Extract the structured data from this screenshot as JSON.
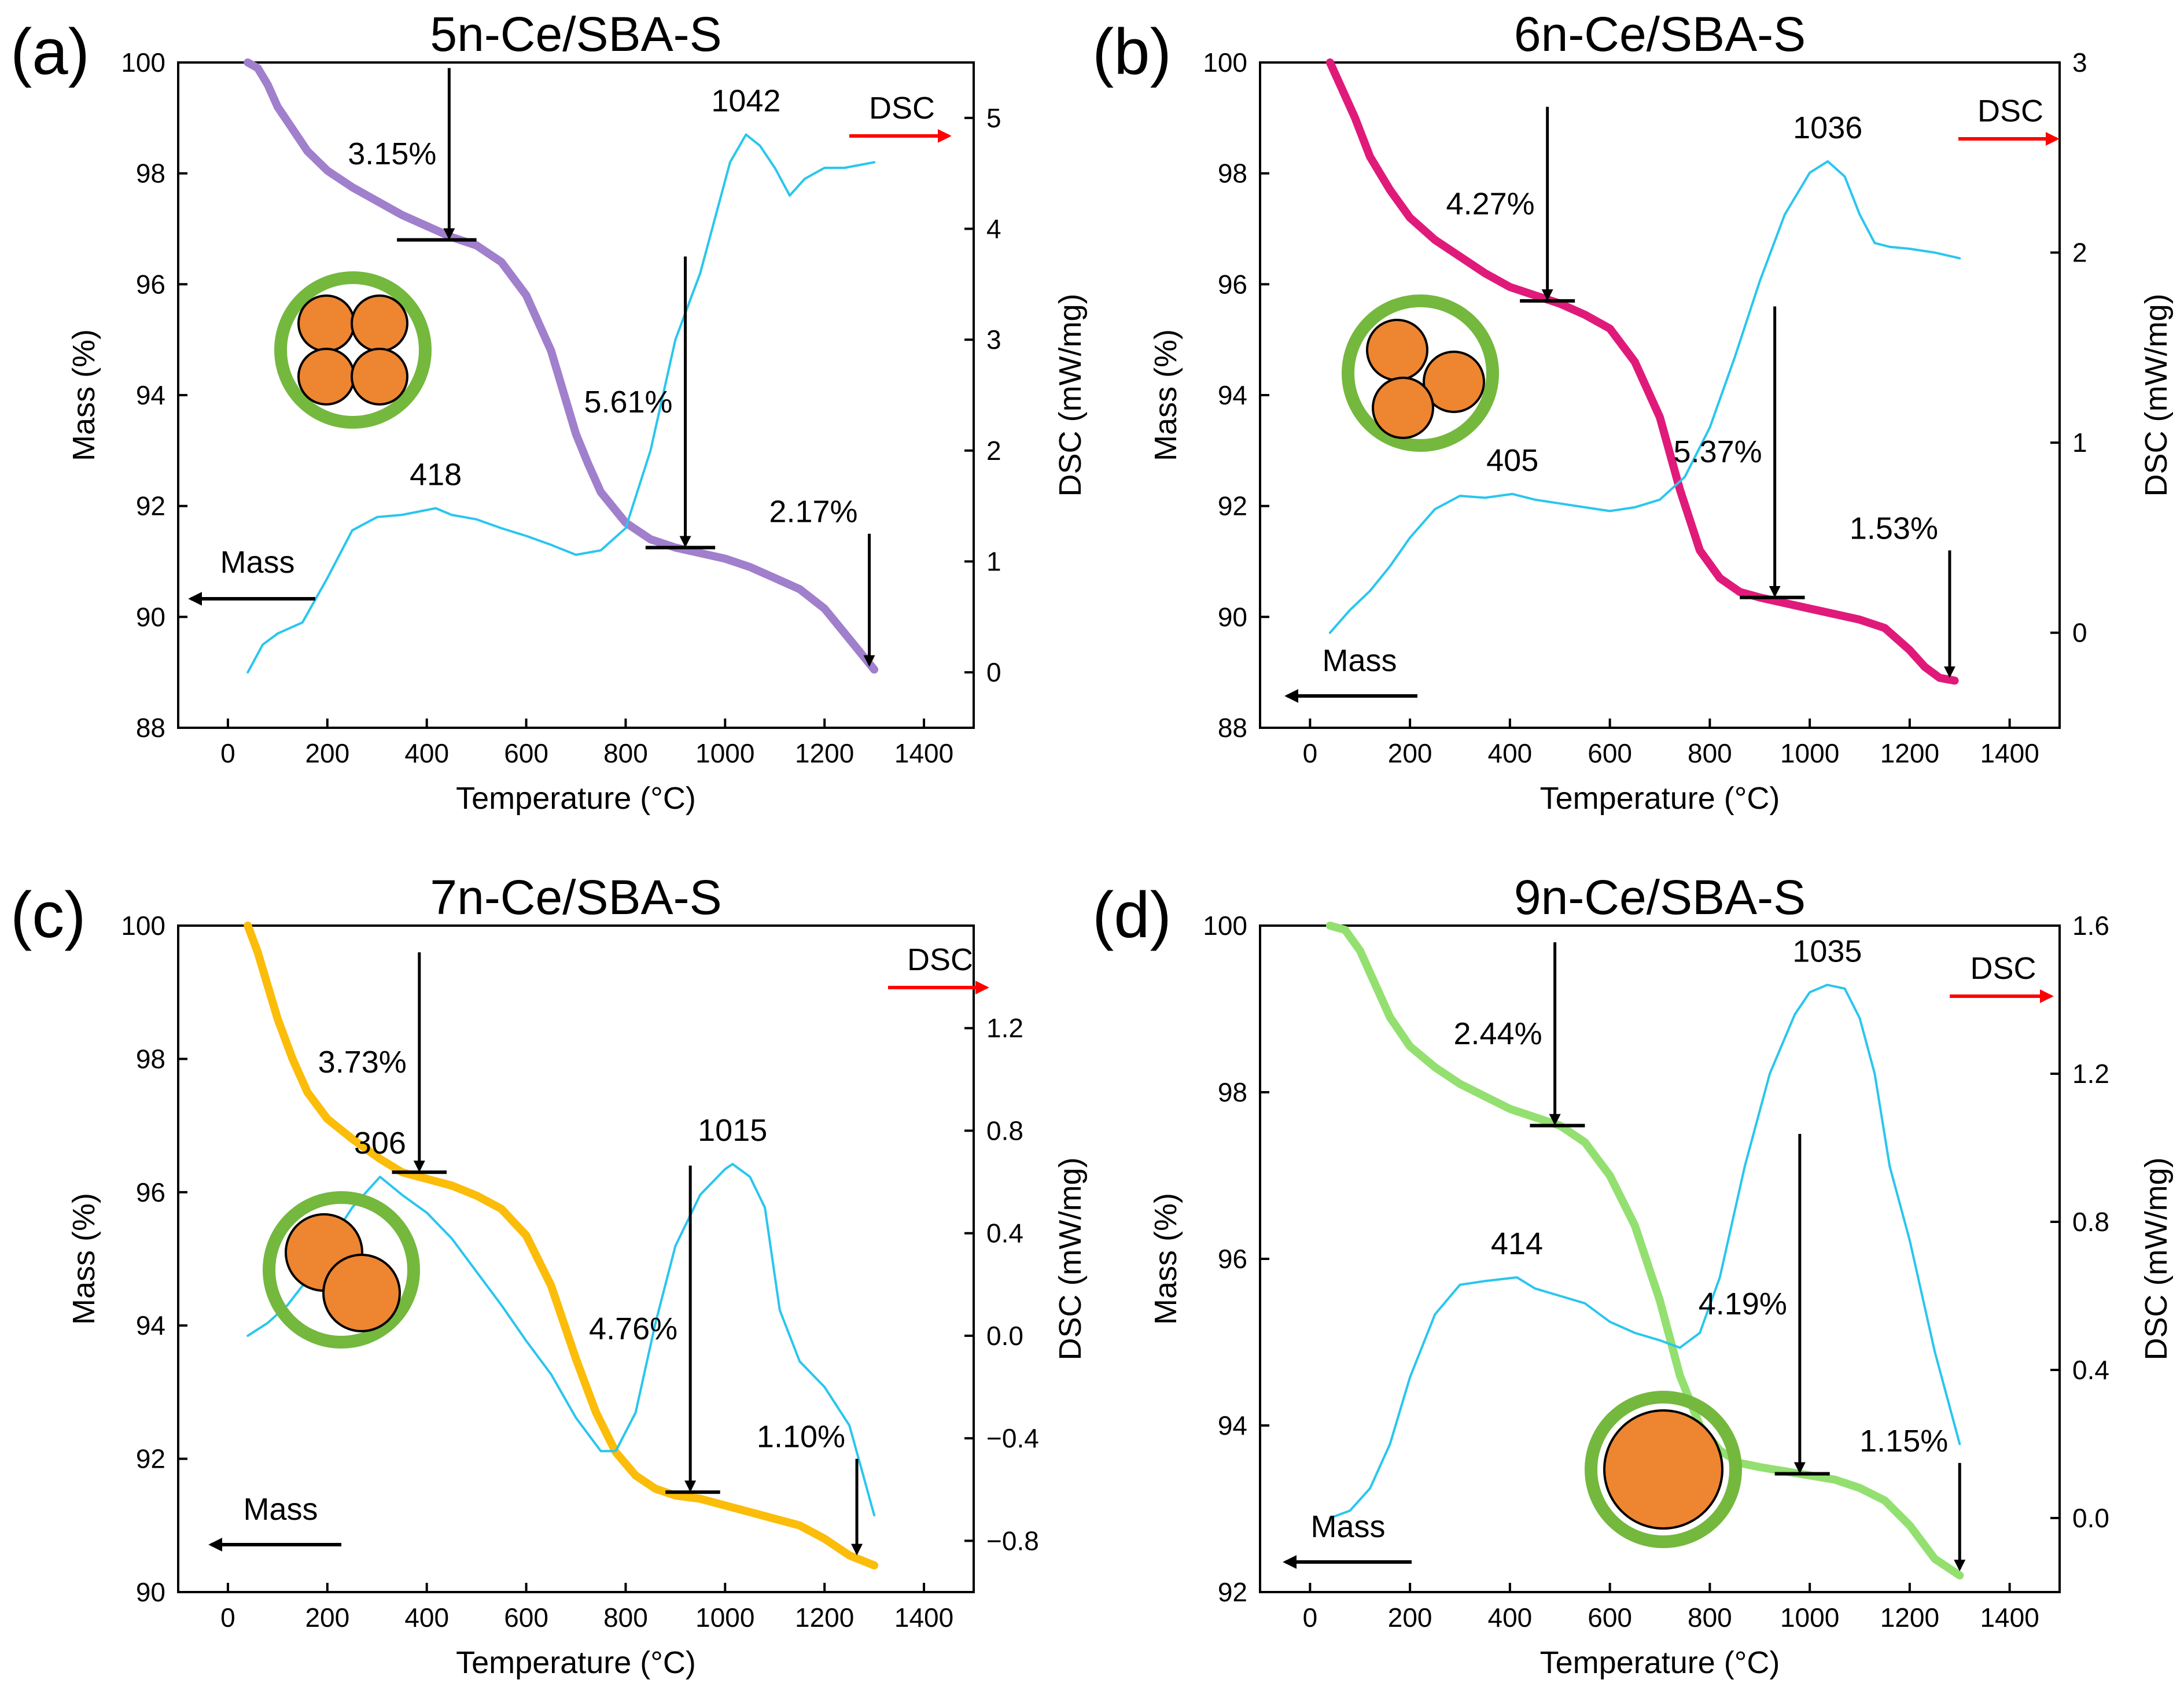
{
  "figure": {
    "background": "#ffffff"
  },
  "colors": {
    "dsc_curve": "#29c6ee",
    "annotation_red": "#ff0000",
    "arrow": "#000000",
    "shell_green": "#74b83e",
    "particle_orange": "#ee8530"
  },
  "chart_data": [
    {
      "panel": "(a)",
      "title": "5n-Ce/SBA-S",
      "type": "line",
      "xlabel": "Temperature (°C)",
      "ylabel_left": "Mass (%)",
      "ylabel_right": "DSC (mW/mg)",
      "xlim": [
        -100,
        1500
      ],
      "ylim_left": [
        88,
        100
      ],
      "ylim_right": [
        -0.5,
        5.5
      ],
      "xticks": [
        0,
        200,
        400,
        600,
        800,
        1000,
        1200,
        1400
      ],
      "yticks_left": [
        88,
        90,
        92,
        94,
        96,
        98,
        100
      ],
      "yticks_right": [
        0,
        1,
        2,
        3,
        4,
        5
      ],
      "mass_color": "#a07fcc",
      "series": [
        {
          "name": "Mass",
          "axis": "left",
          "x": [
            40,
            60,
            80,
            100,
            130,
            160,
            200,
            250,
            300,
            350,
            400,
            450,
            500,
            550,
            600,
            650,
            700,
            725,
            750,
            800,
            850,
            900,
            950,
            1000,
            1050,
            1100,
            1150,
            1200,
            1250,
            1300
          ],
          "y": [
            100,
            99.9,
            99.6,
            99.2,
            98.8,
            98.4,
            98.05,
            97.75,
            97.5,
            97.25,
            97.05,
            96.85,
            96.7,
            96.4,
            95.8,
            94.8,
            93.3,
            92.75,
            92.25,
            91.7,
            91.4,
            91.25,
            91.15,
            91.05,
            90.9,
            90.7,
            90.5,
            90.15,
            89.6,
            89.05
          ]
        },
        {
          "name": "DSC",
          "axis": "right",
          "x": [
            40,
            70,
            100,
            150,
            200,
            250,
            300,
            350,
            418,
            450,
            500,
            550,
            600,
            650,
            700,
            750,
            800,
            850,
            900,
            950,
            980,
            1010,
            1042,
            1070,
            1100,
            1130,
            1160,
            1200,
            1240,
            1300
          ],
          "y": [
            0,
            0.25,
            0.35,
            0.45,
            0.85,
            1.28,
            1.4,
            1.42,
            1.48,
            1.42,
            1.38,
            1.3,
            1.23,
            1.15,
            1.06,
            1.1,
            1.3,
            2.0,
            3.0,
            3.6,
            4.1,
            4.6,
            4.85,
            4.75,
            4.55,
            4.3,
            4.45,
            4.55,
            4.55,
            4.6
          ]
        }
      ],
      "peak_labels": [
        {
          "text": "418",
          "x": 418,
          "y": 1.48
        },
        {
          "text": "1042",
          "x": 1042,
          "y": 4.85
        }
      ],
      "steps": [
        {
          "label": "3.15%",
          "x": 445,
          "y_top": 99.9,
          "y_bottom": 96.8,
          "bar": [
            340,
            500
          ]
        },
        {
          "label": "5.61%",
          "x": 920,
          "y_top": 96.5,
          "y_bottom": 91.25,
          "bar": [
            840,
            980
          ]
        },
        {
          "label": "2.17%",
          "x": 1290,
          "y_top": 91.5,
          "y_bottom": 89.1,
          "bar": null
        }
      ],
      "dsc_label": "DSC",
      "mass_label": "Mass",
      "particles": 4
    },
    {
      "panel": "(b)",
      "title": "6n-Ce/SBA-S",
      "type": "line",
      "xlabel": "Temperature (°C)",
      "ylabel_left": "Mass (%)",
      "ylabel_right": "DSC (mW/mg)",
      "xlim": [
        -100,
        1500
      ],
      "ylim_left": [
        88,
        100
      ],
      "ylim_right": [
        -0.5,
        3
      ],
      "xticks": [
        0,
        200,
        400,
        600,
        800,
        1000,
        1200,
        1400
      ],
      "yticks_left": [
        88,
        90,
        92,
        94,
        96,
        98,
        100
      ],
      "yticks_right": [
        0,
        1,
        2,
        3
      ],
      "mass_color": "#e01a7a",
      "series": [
        {
          "name": "Mass",
          "axis": "left",
          "x": [
            40,
            60,
            90,
            120,
            160,
            200,
            250,
            300,
            350,
            400,
            450,
            500,
            550,
            600,
            650,
            700,
            740,
            780,
            820,
            860,
            900,
            950,
            1000,
            1050,
            1100,
            1150,
            1200,
            1230,
            1260,
            1290
          ],
          "y": [
            100,
            99.6,
            99.0,
            98.3,
            97.7,
            97.2,
            96.8,
            96.5,
            96.2,
            95.95,
            95.8,
            95.65,
            95.45,
            95.2,
            94.6,
            93.6,
            92.3,
            91.2,
            90.7,
            90.45,
            90.35,
            90.25,
            90.15,
            90.05,
            89.95,
            89.8,
            89.4,
            89.1,
            88.9,
            88.85
          ]
        },
        {
          "name": "DSC",
          "axis": "right",
          "x": [
            40,
            80,
            120,
            160,
            200,
            250,
            300,
            350,
            405,
            450,
            500,
            550,
            600,
            650,
            700,
            750,
            800,
            850,
            900,
            950,
            1000,
            1036,
            1070,
            1100,
            1130,
            1160,
            1200,
            1250,
            1300
          ],
          "y": [
            0,
            0.12,
            0.22,
            0.35,
            0.5,
            0.65,
            0.72,
            0.71,
            0.73,
            0.7,
            0.68,
            0.66,
            0.64,
            0.66,
            0.7,
            0.82,
            1.08,
            1.45,
            1.85,
            2.2,
            2.42,
            2.48,
            2.4,
            2.2,
            2.05,
            2.03,
            2.02,
            2.0,
            1.97
          ]
        }
      ],
      "peak_labels": [
        {
          "text": "405",
          "x": 405,
          "y": 0.73
        },
        {
          "text": "1036",
          "x": 1036,
          "y": 2.48
        }
      ],
      "steps": [
        {
          "label": "4.27%",
          "x": 475,
          "y_top": 99.2,
          "y_bottom": 95.7,
          "bar": [
            420,
            530
          ]
        },
        {
          "label": "5.37%",
          "x": 930,
          "y_top": 95.6,
          "y_bottom": 90.35,
          "bar": [
            860,
            990
          ]
        },
        {
          "label": "1.53%",
          "x": 1280,
          "y_top": 91.2,
          "y_bottom": 88.9,
          "bar": null
        }
      ],
      "dsc_label": "DSC",
      "mass_label": "Mass",
      "particles": 3
    },
    {
      "panel": "(c)",
      "title": "7n-Ce/SBA-S",
      "type": "line",
      "xlabel": "Temperature (°C)",
      "ylabel_left": "Mass (%)",
      "ylabel_right": "DSC (mW/mg)",
      "xlim": [
        -100,
        1500
      ],
      "ylim_left": [
        90,
        100
      ],
      "ylim_right": [
        -1.0,
        1.6
      ],
      "xticks": [
        0,
        200,
        400,
        600,
        800,
        1000,
        1200,
        1400
      ],
      "yticks_left": [
        90,
        92,
        94,
        96,
        98,
        100
      ],
      "yticks_right": [
        -0.8,
        -0.4,
        0.0,
        0.4,
        0.8,
        1.2
      ],
      "yticks_right_labels": [
        "−0.8",
        "−0.4",
        "0.0",
        "0.4",
        "0.8",
        "1.2"
      ],
      "mass_color": "#fbbd0a",
      "series": [
        {
          "name": "Mass",
          "axis": "left",
          "x": [
            40,
            60,
            80,
            100,
            130,
            160,
            200,
            250,
            306,
            350,
            400,
            450,
            500,
            550,
            600,
            650,
            700,
            740,
            780,
            820,
            860,
            900,
            950,
            1000,
            1050,
            1100,
            1150,
            1200,
            1250,
            1300
          ],
          "y": [
            100,
            99.6,
            99.1,
            98.6,
            98.0,
            97.5,
            97.1,
            96.8,
            96.5,
            96.3,
            96.2,
            96.1,
            95.95,
            95.75,
            95.35,
            94.6,
            93.5,
            92.7,
            92.1,
            91.75,
            91.55,
            91.45,
            91.4,
            91.3,
            91.2,
            91.1,
            91.0,
            90.8,
            90.55,
            90.4
          ]
        },
        {
          "name": "DSC",
          "axis": "right",
          "x": [
            40,
            80,
            120,
            160,
            200,
            250,
            306,
            350,
            400,
            450,
            500,
            550,
            600,
            650,
            700,
            750,
            780,
            820,
            860,
            900,
            950,
            1000,
            1015,
            1050,
            1080,
            1110,
            1150,
            1200,
            1250,
            1300
          ],
          "y": [
            0.0,
            0.05,
            0.12,
            0.22,
            0.35,
            0.5,
            0.62,
            0.55,
            0.48,
            0.38,
            0.25,
            0.12,
            -0.02,
            -0.15,
            -0.32,
            -0.45,
            -0.45,
            -0.3,
            0.05,
            0.35,
            0.55,
            0.65,
            0.67,
            0.62,
            0.5,
            0.1,
            -0.1,
            -0.2,
            -0.35,
            -0.7
          ]
        }
      ],
      "peak_labels": [
        {
          "text": "306",
          "x": 306,
          "y": 0.62
        },
        {
          "text": "1015",
          "x": 1015,
          "y": 0.67
        }
      ],
      "steps": [
        {
          "label": "3.73%",
          "x": 385,
          "y_top": 99.6,
          "y_bottom": 96.3,
          "bar": [
            330,
            440
          ]
        },
        {
          "label": "4.76%",
          "x": 930,
          "y_top": 96.4,
          "y_bottom": 91.5,
          "bar": [
            880,
            990
          ]
        },
        {
          "label": "1.10%",
          "x": 1265,
          "y_top": 92.0,
          "y_bottom": 90.55,
          "bar": null
        }
      ],
      "dsc_label": "DSC",
      "mass_label": "Mass",
      "particles": 2
    },
    {
      "panel": "(d)",
      "title": "9n-Ce/SBA-S",
      "type": "line",
      "xlabel": "Temperature (°C)",
      "ylabel_left": "Mass (%)",
      "ylabel_right": "DSC (mW/mg)",
      "xlim": [
        -100,
        1500
      ],
      "ylim_left": [
        92,
        100
      ],
      "ylim_right": [
        -0.2,
        1.6
      ],
      "xticks": [
        0,
        200,
        400,
        600,
        800,
        1000,
        1200,
        1400
      ],
      "yticks_left": [
        92,
        94,
        96,
        98,
        100
      ],
      "yticks_right": [
        0.0,
        0.4,
        0.8,
        1.2,
        1.6
      ],
      "yticks_right_labels": [
        "0.0",
        "0.4",
        "0.8",
        "1.2",
        "1.6"
      ],
      "mass_color": "#93e070",
      "series": [
        {
          "name": "Mass",
          "axis": "left",
          "x": [
            40,
            70,
            100,
            130,
            160,
            200,
            250,
            300,
            350,
            400,
            450,
            500,
            550,
            600,
            650,
            700,
            740,
            780,
            820,
            860,
            900,
            950,
            1000,
            1050,
            1100,
            1150,
            1200,
            1250,
            1300
          ],
          "y": [
            100,
            99.95,
            99.7,
            99.3,
            98.9,
            98.55,
            98.3,
            98.1,
            97.95,
            97.8,
            97.7,
            97.6,
            97.4,
            97.0,
            96.4,
            95.5,
            94.6,
            94.0,
            93.7,
            93.55,
            93.5,
            93.45,
            93.4,
            93.35,
            93.25,
            93.1,
            92.8,
            92.4,
            92.2
          ]
        },
        {
          "name": "DSC",
          "axis": "right",
          "x": [
            40,
            80,
            120,
            160,
            200,
            250,
            300,
            350,
            414,
            450,
            500,
            550,
            600,
            650,
            700,
            740,
            780,
            820,
            870,
            920,
            970,
            1000,
            1035,
            1070,
            1100,
            1130,
            1160,
            1200,
            1250,
            1300
          ],
          "y": [
            0.0,
            0.02,
            0.08,
            0.2,
            0.38,
            0.55,
            0.63,
            0.64,
            0.65,
            0.62,
            0.6,
            0.58,
            0.53,
            0.5,
            0.48,
            0.46,
            0.5,
            0.65,
            0.95,
            1.2,
            1.36,
            1.42,
            1.44,
            1.43,
            1.35,
            1.2,
            0.95,
            0.75,
            0.45,
            0.2
          ]
        }
      ],
      "peak_labels": [
        {
          "text": "414",
          "x": 414,
          "y": 0.65
        },
        {
          "text": "1035",
          "x": 1035,
          "y": 1.44
        }
      ],
      "steps": [
        {
          "label": "2.44%",
          "x": 490,
          "y_top": 99.8,
          "y_bottom": 97.6,
          "bar": [
            440,
            550
          ]
        },
        {
          "label": "4.19%",
          "x": 980,
          "y_top": 97.5,
          "y_bottom": 93.42,
          "bar": [
            930,
            1040
          ]
        },
        {
          "label": "1.15%",
          "x": 1300,
          "y_top": 93.55,
          "y_bottom": 92.25,
          "bar": null
        }
      ],
      "dsc_label": "DSC",
      "mass_label": "Mass",
      "particles": 1
    }
  ]
}
